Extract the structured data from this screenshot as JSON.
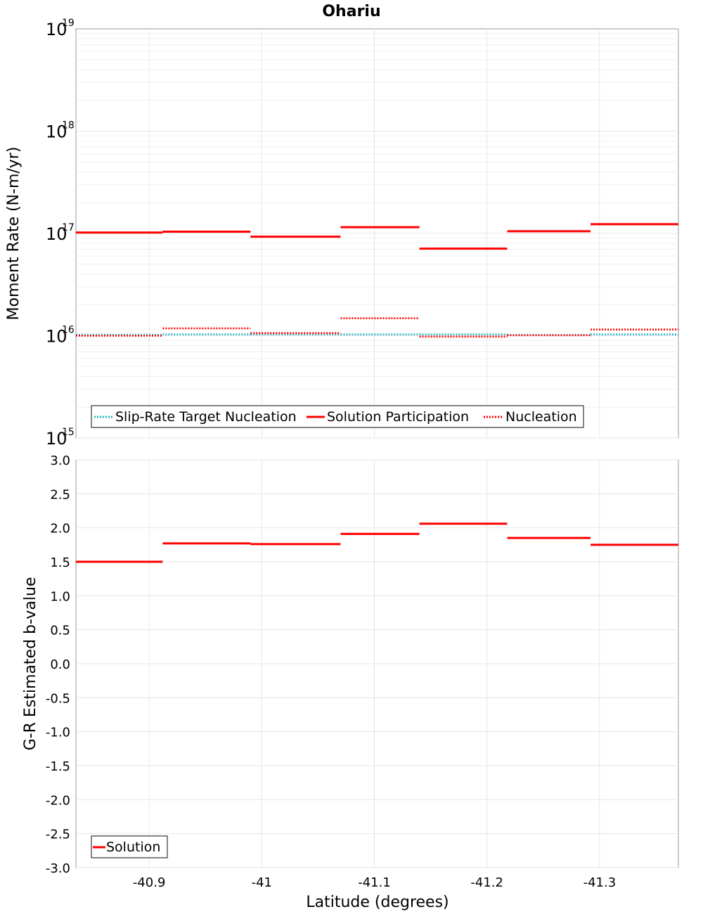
{
  "chart_data": [
    {
      "type": "line",
      "title": "Ohariu",
      "xlabel": "Latitude (degrees)",
      "ylabel": "Moment Rate (N-m/yr)",
      "yscale": "log",
      "ylim_exponents": [
        15,
        19
      ],
      "y_tick_base": "10",
      "y_tick_exponents": [
        "15",
        "16",
        "17",
        "18",
        "19"
      ],
      "xlim": [
        -40.835,
        -41.37
      ],
      "x_ticks": [
        -40.9,
        -41.0,
        -41.1,
        -41.2,
        -41.3
      ],
      "x_tick_labels": [
        "-40.9",
        "-41",
        "-41.1",
        "-41.2",
        "-41.3"
      ],
      "bins": [
        [
          -40.835,
          -40.912
        ],
        [
          -40.912,
          -40.99
        ],
        [
          -40.99,
          -41.07
        ],
        [
          -41.07,
          -41.14
        ],
        [
          -41.14,
          -41.218
        ],
        [
          -41.218,
          -41.292
        ],
        [
          -41.292,
          -41.37
        ]
      ],
      "series": [
        {
          "name": "Slip-Rate Target Nucleation",
          "style": "dotted",
          "color": "#22b5c2",
          "values": [
            1.02e+16,
            1.03e+16,
            1.03e+16,
            1.03e+16,
            1.03e+16,
            1.02e+16,
            1.03e+16
          ]
        },
        {
          "name": "Solution Participation",
          "style": "solid",
          "color": "#ff0000",
          "values": [
            1.02e+17,
            1.04e+17,
            9.3e+16,
            1.15e+17,
            7.1e+16,
            1.05e+17,
            1.23e+17
          ]
        },
        {
          "name": "Nucleation",
          "style": "dotted",
          "color": "#ff0000",
          "values": [
            1e+16,
            1.18e+16,
            1.06e+16,
            1.48e+16,
            9800000000000000.0,
            1.01e+16,
            1.15e+16
          ]
        }
      ],
      "legend": [
        "Slip-Rate Target Nucleation",
        "Solution Participation",
        "Nucleation"
      ],
      "legend_position": "bottom-left",
      "grid": true
    },
    {
      "type": "line",
      "title": "",
      "xlabel": "Latitude (degrees)",
      "ylabel": "G-R Estimated b-value",
      "ylim": [
        -3.0,
        3.0
      ],
      "y_ticks": [
        3.0,
        2.5,
        2.0,
        1.5,
        1.0,
        0.5,
        0.0,
        -0.5,
        -1.0,
        -1.5,
        -2.0,
        -2.5,
        -3.0
      ],
      "y_tick_labels": [
        "3.0",
        "2.5",
        "2.0",
        "1.5",
        "1.0",
        "0.5",
        "0.0",
        "-0.5",
        "-1.0",
        "-1.5",
        "-2.0",
        "-2.5",
        "-3.0"
      ],
      "xlim": [
        -40.835,
        -41.37
      ],
      "x_ticks": [
        -40.9,
        -41.0,
        -41.1,
        -41.2,
        -41.3
      ],
      "x_tick_labels": [
        "-40.9",
        "-41",
        "-41.1",
        "-41.2",
        "-41.3"
      ],
      "bins": [
        [
          -40.835,
          -40.912
        ],
        [
          -40.912,
          -40.99
        ],
        [
          -40.99,
          -41.07
        ],
        [
          -41.07,
          -41.14
        ],
        [
          -41.14,
          -41.218
        ],
        [
          -41.218,
          -41.292
        ],
        [
          -41.292,
          -41.37
        ]
      ],
      "series": [
        {
          "name": "Solution",
          "style": "solid",
          "color": "#ff0000",
          "values": [
            1.5,
            1.77,
            1.76,
            1.91,
            2.06,
            1.85,
            1.75
          ]
        }
      ],
      "legend": [
        "Solution"
      ],
      "legend_position": "bottom-left",
      "grid": true
    }
  ]
}
